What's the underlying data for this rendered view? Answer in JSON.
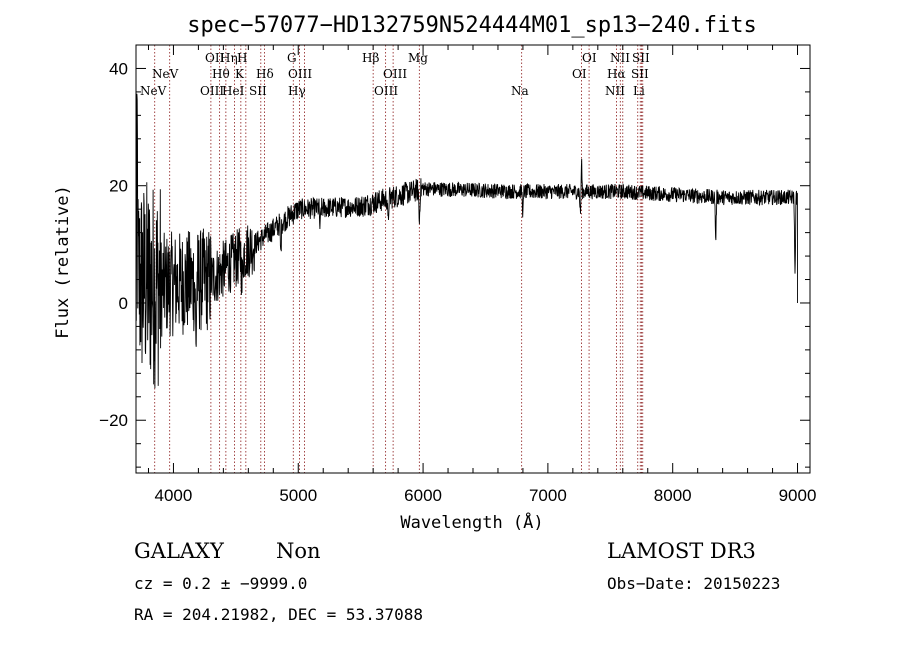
{
  "chart_data": {
    "type": "line",
    "title": "spec−57077−HD132759N524444M01_sp13−240.fits",
    "xlabel": "Wavelength (Å)",
    "ylabel": "Flux (relative)",
    "xlim": [
      3700,
      9100
    ],
    "ylim": [
      -29,
      44
    ],
    "x_ticks": [
      4000,
      5000,
      6000,
      7000,
      8000,
      9000
    ],
    "y_ticks": [
      -20,
      0,
      20,
      40
    ],
    "x_minor_step": 200,
    "y_minor_step": 4,
    "line_color": "#000000",
    "marker_color": "#8b1a1a",
    "spectral_lines": [
      {
        "label": "NeV",
        "wavelength": 3426,
        "row": 3
      },
      {
        "label": "NeV",
        "wavelength": 3870,
        "row": 2
      },
      {
        "label": "OII",
        "wavelength": 3727,
        "row": 1
      },
      {
        "label": "Hη",
        "wavelength": 3835,
        "row": 1
      },
      {
        "label": "H",
        "wavelength": 3969,
        "row": 1
      },
      {
        "label": "Hθ",
        "wavelength": 3798,
        "row": 2
      },
      {
        "label": "K",
        "wavelength": 3934,
        "row": 2
      },
      {
        "label": "Hδ",
        "wavelength": 4102,
        "row": 2
      },
      {
        "label": "OIII",
        "wavelength": 4363,
        "row": 3
      },
      {
        "label": "HeI",
        "wavelength": 4471,
        "row": 3
      },
      {
        "label": "SII",
        "wavelength": 4072,
        "row": 3
      },
      {
        "label": "G",
        "wavelength": 4304,
        "row": 1
      },
      {
        "label": "OIII",
        "wavelength": 4363,
        "row": 2
      },
      {
        "label": "Hγ",
        "wavelength": 4341,
        "row": 3
      },
      {
        "label": "Hβ",
        "wavelength": 4861,
        "row": 1
      },
      {
        "label": "OIII",
        "wavelength": 4959,
        "row": 2
      },
      {
        "label": "OIII",
        "wavelength": 5007,
        "row": 3
      },
      {
        "label": "Mg",
        "wavelength": 5175,
        "row": 1
      },
      {
        "label": "Na",
        "wavelength": 5893,
        "row": 3
      },
      {
        "label": "OI",
        "wavelength": 6300,
        "row": 1
      },
      {
        "label": "OI",
        "wavelength": 6364,
        "row": 2
      },
      {
        "label": "NII",
        "wavelength": 6548,
        "row": 1
      },
      {
        "label": "SII",
        "wavelength": 6717,
        "row": 1
      },
      {
        "label": "Hα",
        "wavelength": 6563,
        "row": 2
      },
      {
        "label": "SII",
        "wavelength": 6731,
        "row": 2
      },
      {
        "label": "NII",
        "wavelength": 6584,
        "row": 3
      },
      {
        "label": "Li",
        "wavelength": 6708,
        "row": 3
      }
    ],
    "marker_wavelengths": [
      3850,
      3970,
      4300,
      4370,
      4420,
      4490,
      4540,
      4580,
      4700,
      4730,
      4960,
      5010,
      5050,
      5600,
      5700,
      5760,
      5970,
      6790,
      7270,
      7330,
      7550,
      7580,
      7600,
      7720,
      7740,
      7750,
      7760
    ],
    "spectrum_segments": [
      {
        "x0": 3700,
        "x1": 3900,
        "base": 4,
        "noise": 18
      },
      {
        "x0": 3900,
        "x1": 4300,
        "base": 3,
        "noise": 9
      },
      {
        "x0": 4300,
        "x1": 4650,
        "base": 4,
        "noise": 5
      },
      {
        "x0": 4650,
        "x1": 5000,
        "base": 10,
        "noise": 2
      },
      {
        "x0": 5000,
        "x1": 5500,
        "base": 16,
        "noise": 1.8
      },
      {
        "x0": 5500,
        "x1": 6000,
        "base": 16.5,
        "noise": 2
      },
      {
        "x0": 6000,
        "x1": 6800,
        "base": 19.5,
        "noise": 1.3
      },
      {
        "x0": 6800,
        "x1": 7600,
        "base": 19,
        "noise": 1.3
      },
      {
        "x0": 7600,
        "x1": 8400,
        "base": 19,
        "noise": 1.3
      },
      {
        "x0": 8400,
        "x1": 9000,
        "base": 18,
        "noise": 1.3
      }
    ],
    "absorption_dips": [
      {
        "x": 4180,
        "depth": -12
      },
      {
        "x": 4550,
        "depth": -6
      },
      {
        "x": 4860,
        "depth": -6
      },
      {
        "x": 5175,
        "depth": -4
      },
      {
        "x": 5720,
        "depth": -5
      },
      {
        "x": 5970,
        "depth": -6
      },
      {
        "x": 6800,
        "depth": -4
      },
      {
        "x": 7260,
        "depth": -4
      },
      {
        "x": 8345,
        "depth": -8
      },
      {
        "x": 8980,
        "depth": -14
      }
    ],
    "emission_spikes": [
      {
        "x": 7270,
        "height": 6
      },
      {
        "x": 3710,
        "height": 26
      }
    ]
  },
  "info": {
    "object_class": "GALAXY",
    "subclass": "Non",
    "survey": "LAMOST DR3",
    "cz": "cz = 0.2 ± −9999.0",
    "obs_date": "Obs−Date: 20150223",
    "coords": "RA = 204.21982, DEC =  53.37088"
  }
}
